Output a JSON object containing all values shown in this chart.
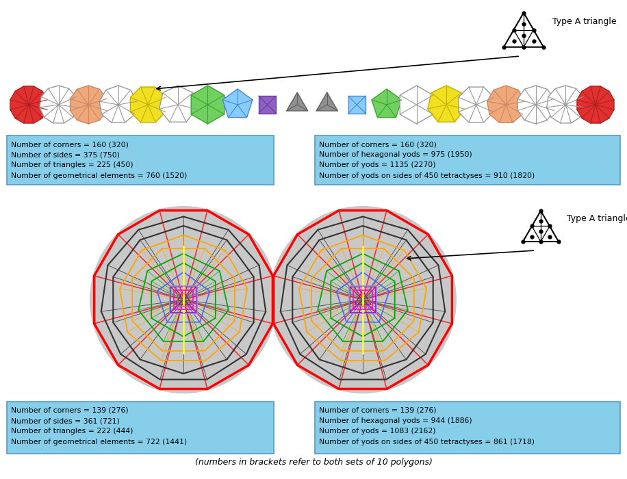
{
  "title_bottom": "(numbers in brackets refer to both sets of 10 polygons)",
  "type_a_label": "Type A triangle",
  "box1_text": "Number of corners = 160 (320)\nNumber of sides = 375 (750)\nNumber of triangles = 225 (450)\nNumber of geometrical elements = 760 (1520)",
  "box2_text": "Number of corners = 160 (320)\nNumber of hexagonal yods = 975 (1950)\nNumber of yods = 1135 (2270)\nNumber of yods on sides of 450 tetractyses = 910 (1820)",
  "box3_text": "Number of corners = 139 (276)\nNumber of sides = 361 (721)\nNumber of triangles = 222 (444)\nNumber of geometrical elements = 722 (1441)",
  "box4_text": "Number of corners = 139 (276)\nNumber of hexagonal yods = 944 (1886)\nNumber of yods = 1083 (2162)\nNumber of yods on sides of 450 tetractyses = 861 (1718)",
  "bg_color": "#ffffff",
  "box_color": "#87ceeb",
  "box_edge": "#5599cc",
  "left_polys": [
    [
      12,
      "#e03030",
      "#b02020"
    ],
    [
      11,
      "#ffffff",
      "#999999"
    ],
    [
      10,
      "#f0a878",
      "#cc8866"
    ],
    [
      9,
      "#ffffff",
      "#999999"
    ],
    [
      8,
      "#f0e020",
      "#c0b000"
    ],
    [
      7,
      "#ffffff",
      "#999999"
    ],
    [
      6,
      "#70d060",
      "#40a030"
    ],
    [
      5,
      "#88ccff",
      "#4488cc"
    ],
    [
      4,
      "#9060c0",
      "#6040a0"
    ],
    [
      3,
      "#909090",
      "#606060"
    ]
  ],
  "right_polys": [
    [
      3,
      "#909090",
      "#606060"
    ],
    [
      4,
      "#88ccff",
      "#4488cc"
    ],
    [
      5,
      "#70d060",
      "#40a030"
    ],
    [
      6,
      "#ffffff",
      "#999999"
    ],
    [
      7,
      "#f0e020",
      "#c0b000"
    ],
    [
      8,
      "#ffffff",
      "#999999"
    ],
    [
      9,
      "#f0a878",
      "#cc8866"
    ],
    [
      10,
      "#ffffff",
      "#999999"
    ],
    [
      11,
      "#ffffff",
      "#999999"
    ],
    [
      12,
      "#e03030",
      "#b02020"
    ]
  ],
  "nested_colors": [
    "red",
    "#333333",
    "#333333",
    "orange",
    "orange",
    "#00aa00",
    "#00aa00",
    "#4466ff",
    "#aa00aa",
    "#aa00aa"
  ],
  "nested_sides": [
    12,
    11,
    10,
    9,
    8,
    7,
    6,
    5,
    4,
    3
  ],
  "nested_lws": [
    2.5,
    1.5,
    1.5,
    1.3,
    1.3,
    1.3,
    1.3,
    1.2,
    1.2,
    1.0
  ]
}
